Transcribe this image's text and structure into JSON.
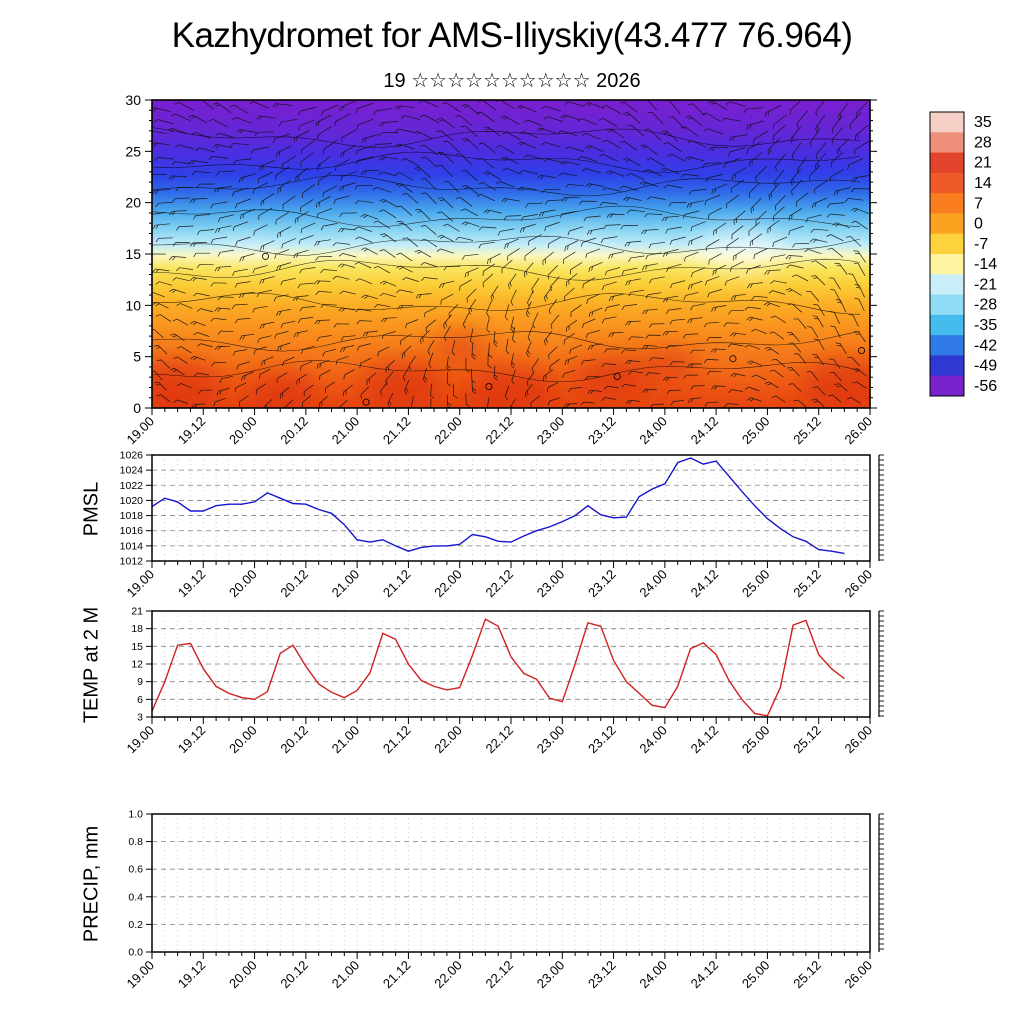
{
  "title": "Kazhydromet for AMS-Iliyskiy(43.477 76.964)",
  "subtitle": "19 ☆☆☆☆☆☆☆☆☆☆ 2026",
  "x_axis": {
    "labels": [
      "19.00",
      "19.12",
      "20.00",
      "20.12",
      "21.00",
      "21.12",
      "22.00",
      "22.12",
      "23.00",
      "23.12",
      "24.00",
      "24.12",
      "25.00",
      "25.12",
      "26.00"
    ],
    "major_step_hours": 12,
    "minor_step_hours": 3,
    "total_hours": 168
  },
  "chart_data": [
    {
      "type": "heatmap",
      "name": "upper-air-temperature-wind-cross-section",
      "ylim": [
        0,
        30
      ],
      "y_ticks": [
        "0",
        "5",
        "10",
        "15",
        "20",
        "25",
        "30"
      ],
      "gradient_stops": [
        {
          "p": 0.0,
          "c": "#7a1fd0"
        },
        {
          "p": 0.1,
          "c": "#6526d6"
        },
        {
          "p": 0.17,
          "c": "#4b2ee0"
        },
        {
          "p": 0.24,
          "c": "#2f3fe8"
        },
        {
          "p": 0.3,
          "c": "#2f6ae8"
        },
        {
          "p": 0.36,
          "c": "#49a7ec"
        },
        {
          "p": 0.42,
          "c": "#86d3f2"
        },
        {
          "p": 0.47,
          "c": "#c0ecf8"
        },
        {
          "p": 0.505,
          "c": "#faf7c0"
        },
        {
          "p": 0.545,
          "c": "#f9e55e"
        },
        {
          "p": 0.6,
          "c": "#fbce38"
        },
        {
          "p": 0.67,
          "c": "#fbab24"
        },
        {
          "p": 0.75,
          "c": "#f98f1e"
        },
        {
          "p": 0.85,
          "c": "#f4731a"
        },
        {
          "p": 0.94,
          "c": "#ed5514"
        },
        {
          "p": 1.0,
          "c": "#e64510"
        }
      ],
      "hot_spots": [
        {
          "x": 0.03,
          "y": 0.93,
          "r": 50
        },
        {
          "x": 0.18,
          "y": 0.95,
          "r": 38
        },
        {
          "x": 0.35,
          "y": 0.92,
          "r": 44
        },
        {
          "x": 0.5,
          "y": 0.94,
          "r": 46
        },
        {
          "x": 0.64,
          "y": 0.9,
          "r": 40
        },
        {
          "x": 0.97,
          "y": 0.92,
          "r": 48
        },
        {
          "x": 0.43,
          "y": 0.8,
          "r": 26
        },
        {
          "x": 0.72,
          "y": 0.86,
          "r": 28
        }
      ],
      "light_spots": [
        {
          "x": 0.82,
          "y": 0.49,
          "r": 42,
          "o": 0.55
        },
        {
          "x": 0.13,
          "y": 0.5,
          "r": 24,
          "o": 0.3
        },
        {
          "x": 0.6,
          "y": 0.47,
          "r": 26,
          "o": 0.3
        }
      ],
      "colorbar": {
        "values": [
          "35",
          "28",
          "21",
          "14",
          "7",
          "0",
          "-7",
          "-14",
          "-21",
          "-28",
          "-35",
          "-42",
          "-49",
          "-56"
        ],
        "colors": [
          "#f6cfc6",
          "#ee8f7a",
          "#e1432b",
          "#ef5a2a",
          "#f97c1e",
          "#fba321",
          "#fdd23c",
          "#fdf3a0",
          "#c9eef8",
          "#8fdcf4",
          "#46bcee",
          "#2f7ae4",
          "#3038d4",
          "#7722cc"
        ]
      }
    },
    {
      "type": "line",
      "title": "PMSL",
      "color": "#1515cf",
      "ylim": [
        1012,
        1026
      ],
      "y_ticks": [
        "1012",
        "1014",
        "1016",
        "1018",
        "1020",
        "1022",
        "1024",
        "1026"
      ],
      "step_hours": 3,
      "values": [
        1019.2,
        1020.3,
        1019.8,
        1018.6,
        1018.6,
        1019.3,
        1019.5,
        1019.5,
        1019.8,
        1021.0,
        1020.3,
        1019.6,
        1019.5,
        1018.8,
        1018.3,
        1016.8,
        1014.8,
        1014.5,
        1014.8,
        1014.0,
        1013.3,
        1013.8,
        1014.0,
        1014.0,
        1014.2,
        1015.5,
        1015.2,
        1014.6,
        1014.5,
        1015.3,
        1016.0,
        1016.5,
        1017.2,
        1018.0,
        1019.3,
        1018.1,
        1017.7,
        1017.8,
        1020.5,
        1021.5,
        1022.2,
        1025.0,
        1025.6,
        1024.8,
        1025.2,
        1023.2,
        1021.2,
        1019.3,
        1017.6,
        1016.3,
        1015.2,
        1014.6,
        1013.5,
        1013.3,
        1013.0
      ]
    },
    {
      "type": "line",
      "title": "TEMP at 2 M",
      "color": "#d02020",
      "ylim": [
        3,
        21
      ],
      "y_ticks": [
        "3",
        "6",
        "9",
        "12",
        "15",
        "18",
        "21"
      ],
      "step_hours": 3,
      "values": [
        4.0,
        9.0,
        15.2,
        15.5,
        11.2,
        8.2,
        7.0,
        6.3,
        6.0,
        7.3,
        13.8,
        15.2,
        11.6,
        8.6,
        7.2,
        6.3,
        7.5,
        10.5,
        17.2,
        16.2,
        12.0,
        9.2,
        8.2,
        7.6,
        8.0,
        13.5,
        19.6,
        18.4,
        13.2,
        10.4,
        9.4,
        6.2,
        5.6,
        12.0,
        19.0,
        18.4,
        12.6,
        9.0,
        7.0,
        5.0,
        4.6,
        8.2,
        14.6,
        15.6,
        13.6,
        9.2,
        6.0,
        3.6,
        3.2,
        8.0,
        18.6,
        19.4,
        13.6,
        11.2,
        9.5
      ]
    },
    {
      "type": "line",
      "title": "PRECIP, mm",
      "color": "#1515cf",
      "ylim": [
        0,
        1
      ],
      "y_ticks": [
        "0.0",
        "0.2",
        "0.4",
        "0.6",
        "0.8",
        "1.0"
      ],
      "step_hours": 3,
      "values": []
    }
  ]
}
